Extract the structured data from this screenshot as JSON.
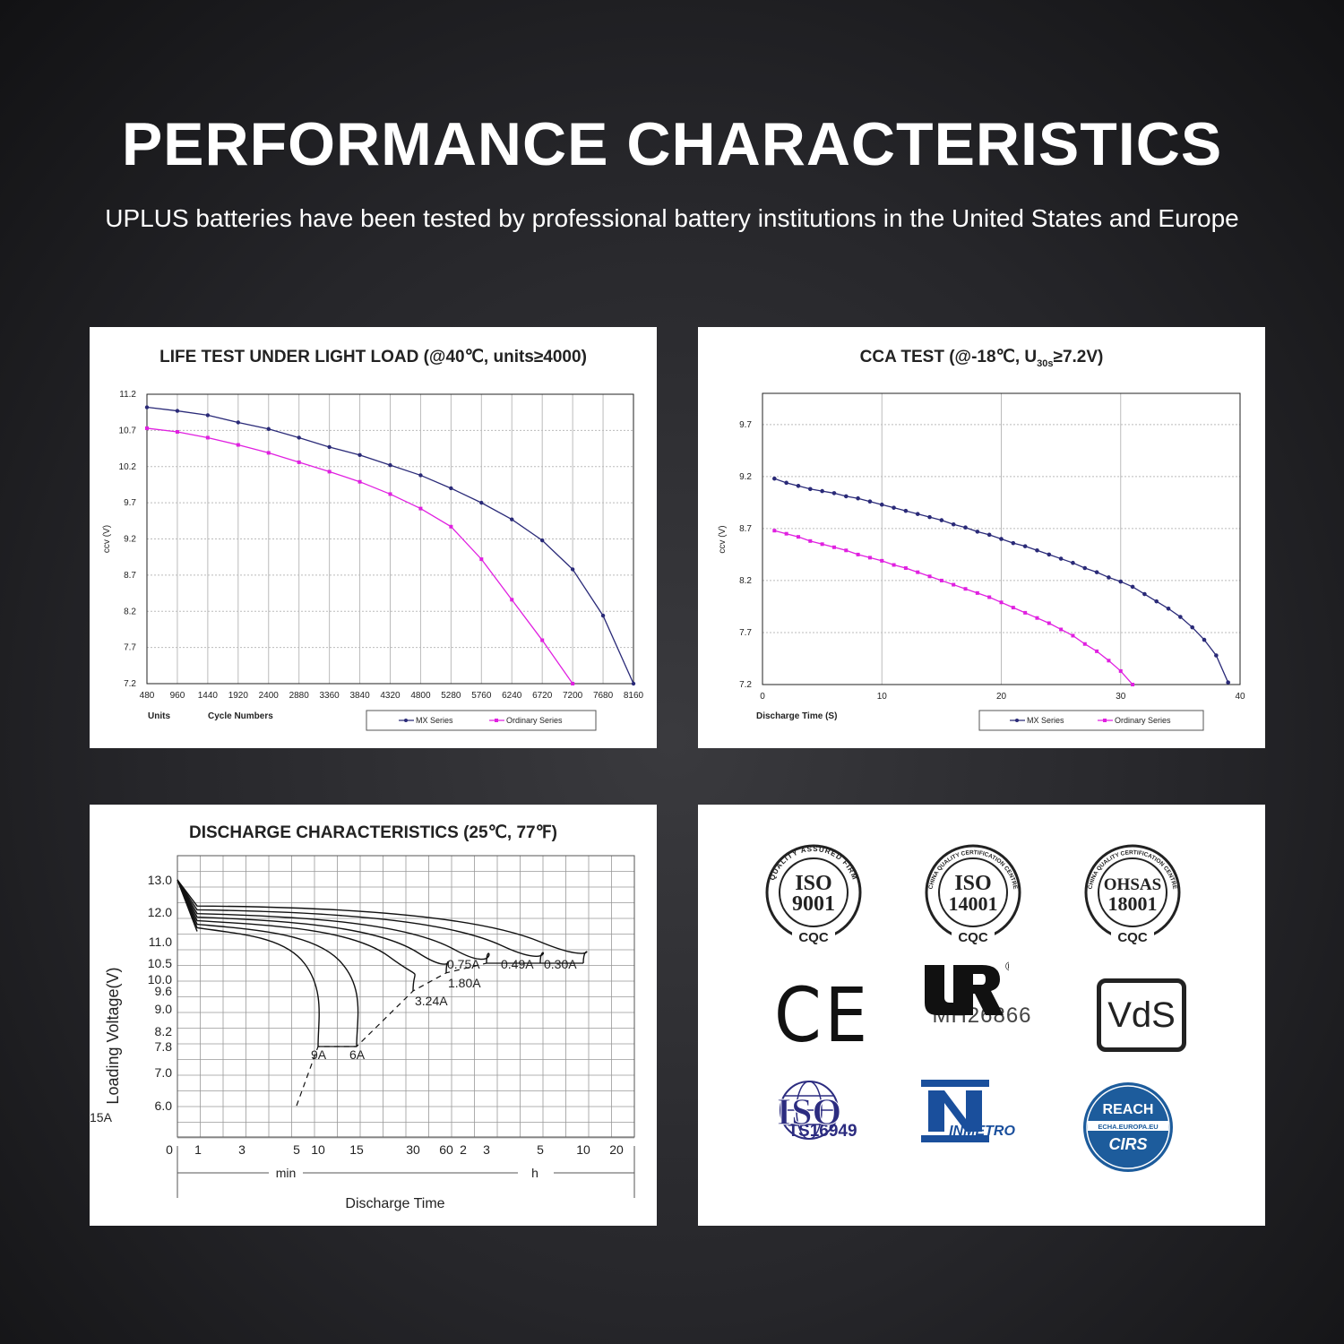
{
  "header": {
    "title": "PERFORMANCE CHARACTERISTICS",
    "subtitle": "UPLUS batteries have been tested by professional battery institutions in the United States and Europe"
  },
  "colors": {
    "series_mx": "#2a2a78",
    "series_ordinary": "#e020e0",
    "axis": "#222222",
    "grid": "#bbbbbb"
  },
  "chart_data": [
    {
      "type": "line",
      "title": "LIFE TEST UNDER LIGHT LOAD (@40℃, units≥4000)",
      "ylabel": "ccv (V)",
      "xlabel_units": "Units",
      "xlabel": "Cycle Numbers",
      "xlim": [
        480,
        8160
      ],
      "ylim": [
        7.2,
        11.2
      ],
      "xticks": [
        "480",
        "960",
        "1440",
        "1920",
        "2400",
        "2880",
        "3360",
        "3840",
        "4320",
        "4800",
        "5280",
        "5760",
        "6240",
        "6720",
        "7200",
        "7680",
        "8160"
      ],
      "yticks": [
        "11.2",
        "10.7",
        "10.2",
        "9.7",
        "9.2",
        "8.7",
        "8.2",
        "7.7",
        "7.2"
      ],
      "grid": true,
      "legend": "bottom",
      "series": [
        {
          "name": "MX Series",
          "x": [
            480,
            960,
            1440,
            1920,
            2400,
            2880,
            3360,
            3840,
            4320,
            4800,
            5280,
            5760,
            6240,
            6720,
            7200,
            7680,
            8160
          ],
          "values": [
            11.02,
            10.97,
            10.91,
            10.81,
            10.72,
            10.6,
            10.47,
            10.36,
            10.22,
            10.08,
            9.9,
            9.7,
            9.47,
            9.18,
            8.78,
            8.14,
            7.2
          ]
        },
        {
          "name": "Ordinary Series",
          "x": [
            480,
            960,
            1440,
            1920,
            2400,
            2880,
            3360,
            3840,
            4320,
            4800,
            5280,
            5760,
            6240,
            6720,
            7200
          ],
          "values": [
            10.73,
            10.68,
            10.6,
            10.5,
            10.39,
            10.26,
            10.13,
            9.99,
            9.82,
            9.62,
            9.37,
            8.92,
            8.36,
            7.8,
            7.2
          ]
        }
      ]
    },
    {
      "type": "line",
      "title": "CCA TEST (@-18℃, U",
      "title_sub": "30s",
      "title_end": "≥7.2V)",
      "ylabel": "ccv (V)",
      "xlabel": "Discharge Time (S)",
      "xlim": [
        0,
        40
      ],
      "ylim": [
        7.2,
        10.0
      ],
      "xticks": [
        "0",
        "10",
        "20",
        "30",
        "40"
      ],
      "yticks": [
        "9.7",
        "9.2",
        "8.7",
        "8.2",
        "7.7",
        "7.2"
      ],
      "grid": true,
      "legend": "bottom",
      "series": [
        {
          "name": "MX Series",
          "x": [
            1,
            2,
            3,
            4,
            5,
            6,
            7,
            8,
            9,
            10,
            11,
            12,
            13,
            14,
            15,
            16,
            17,
            18,
            19,
            20,
            21,
            22,
            23,
            24,
            25,
            26,
            27,
            28,
            29,
            30,
            31,
            32,
            33,
            34,
            35,
            36,
            37,
            38,
            39
          ],
          "values": [
            9.18,
            9.14,
            9.11,
            9.08,
            9.06,
            9.04,
            9.01,
            8.99,
            8.96,
            8.93,
            8.9,
            8.87,
            8.84,
            8.81,
            8.78,
            8.74,
            8.71,
            8.67,
            8.64,
            8.6,
            8.56,
            8.53,
            8.49,
            8.45,
            8.41,
            8.37,
            8.32,
            8.28,
            8.23,
            8.19,
            8.14,
            8.07,
            8.0,
            7.93,
            7.85,
            7.75,
            7.63,
            7.48,
            7.22
          ]
        },
        {
          "name": "Ordinary Series",
          "x": [
            1,
            2,
            3,
            4,
            5,
            6,
            7,
            8,
            9,
            10,
            11,
            12,
            13,
            14,
            15,
            16,
            17,
            18,
            19,
            20,
            21,
            22,
            23,
            24,
            25,
            26,
            27,
            28,
            29,
            30,
            31
          ],
          "values": [
            8.68,
            8.65,
            8.62,
            8.58,
            8.55,
            8.52,
            8.49,
            8.45,
            8.42,
            8.39,
            8.35,
            8.32,
            8.28,
            8.24,
            8.2,
            8.16,
            8.12,
            8.08,
            8.04,
            7.99,
            7.94,
            7.89,
            7.84,
            7.79,
            7.73,
            7.67,
            7.59,
            7.52,
            7.43,
            7.33,
            7.2
          ]
        }
      ]
    },
    {
      "type": "line",
      "title": "DISCHARGE CHARACTERISTICS (25℃, 77℉)",
      "ylabel": "Loading  Voltage(V)",
      "xlabel": "Discharge Time",
      "x_unit_min": "min",
      "x_unit_h": "h",
      "xticks": [
        "0",
        "1",
        "3",
        "5",
        "10",
        "15",
        "30",
        "60",
        "2",
        "3",
        "5",
        "10",
        "20"
      ],
      "yticks": [
        "13.0",
        "12.0",
        "11.0",
        "10.5",
        "10.0",
        "9.6",
        "9.0",
        "8.2",
        "7.8",
        "7.0",
        "6.0"
      ],
      "grid": true,
      "series": [
        {
          "name": "15A",
          "end_time_min": 6,
          "end_voltage": 6.0
        },
        {
          "name": "9A",
          "end_time_min": 10,
          "end_voltage": 7.8
        },
        {
          "name": "6A",
          "end_time_min": 15,
          "end_voltage": 7.8
        },
        {
          "name": "3.24A",
          "end_time_min": 30,
          "end_voltage": 9.6
        },
        {
          "name": "1.80A",
          "end_time_min": 60,
          "end_voltage": 10.2
        },
        {
          "name": "0.75A",
          "end_time_h": 3,
          "end_voltage": 10.5
        },
        {
          "name": "0.49A",
          "end_time_h": 5,
          "end_voltage": 10.5
        },
        {
          "name": "0.30A",
          "end_time_h": 10,
          "end_voltage": 10.5
        }
      ]
    }
  ],
  "certifications": {
    "iso9001": {
      "ring_text": "QUALITY ASSURED FIRM",
      "line1": "ISO",
      "line2": "9001",
      "mark": "CQC"
    },
    "iso14001": {
      "ring_text": "CHINA QUALITY CERTIFICATION CENTRE",
      "line1": "ISO",
      "line2": "14001",
      "mark": "CQC"
    },
    "ohsas": {
      "ring_text": "CHINA QUALITY CERTIFICATION CENTRE",
      "line1": "OHSAS",
      "line2": "18001",
      "mark": "CQC"
    },
    "ce": {
      "label": "CE"
    },
    "ul": {
      "code": "MH26866",
      "reg": "®"
    },
    "vds": {
      "label": "VdS"
    },
    "iso_ts": {
      "label": "ISO",
      "code": "TS16949"
    },
    "inmetro": {
      "label": "INMETRO"
    },
    "reach": {
      "label": "REACH",
      "url": "ECHA.EUROPA.EU",
      "sub": "CIRS"
    }
  }
}
